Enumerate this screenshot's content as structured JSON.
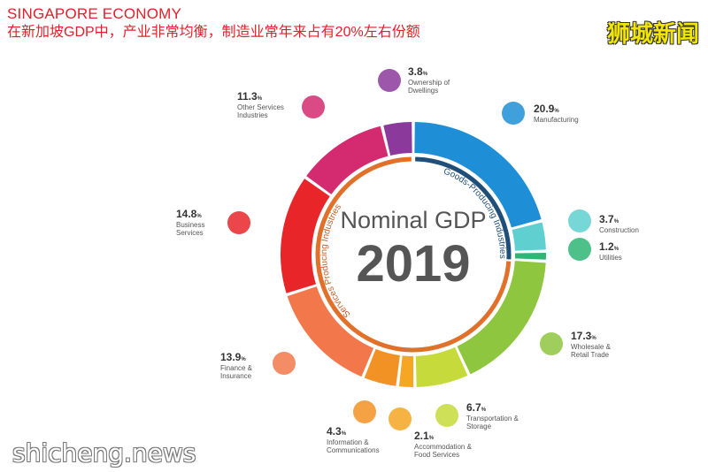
{
  "header": {
    "title": "SINGAPORE ECONOMY",
    "subtitle": "在新加坡GDP中，产业非常均衡，制造业常年来占有20%左右份额"
  },
  "brand": "狮城新闻",
  "watermark": "shicheng.news",
  "center": {
    "line1": "Nominal GDP",
    "line2": "2019"
  },
  "arcs": {
    "goods": "Goods-Producing Industries",
    "services": "Services Producing Industries"
  },
  "chart_data": {
    "type": "pie",
    "title": "Nominal GDP 2019",
    "unit": "%",
    "segments": [
      {
        "label": "Manufacturing",
        "value": 20.9,
        "value_text": "20.9",
        "color": "#1e8fd6",
        "icon": "factory-icon"
      },
      {
        "label": "Construction",
        "value": 3.7,
        "value_text": "3.7",
        "color": "#5fd0cf",
        "icon": "crane-icon"
      },
      {
        "label": "Utilities",
        "value": 1.2,
        "value_text": "1.2",
        "color": "#2fb675",
        "icon": "lightbulb-icon"
      },
      {
        "label": "Wholesale & Retail Trade",
        "value": 17.3,
        "value_text": "17.3",
        "color": "#8fc63f",
        "icon": "box-icon"
      },
      {
        "label": "Transportation & Storage",
        "value": 6.7,
        "value_text": "6.7",
        "color": "#c6da3b",
        "icon": "truck-icon"
      },
      {
        "label": "Accommodation & Food Services",
        "value": 2.1,
        "value_text": "2.1",
        "color": "#f5a623",
        "icon": "shop-icon"
      },
      {
        "label": "Information & Communications",
        "value": 4.3,
        "value_text": "4.3",
        "color": "#f39224",
        "icon": "phone-icon"
      },
      {
        "label": "Finance & Insurance",
        "value": 13.9,
        "value_text": "13.9",
        "color": "#f2784b",
        "icon": "umbrella-icon"
      },
      {
        "label": "Business Services",
        "value": 14.8,
        "value_text": "14.8",
        "color": "#e8262a",
        "icon": "businessman-icon"
      },
      {
        "label": "Other Services Industries",
        "value": 11.3,
        "value_text": "11.3",
        "color": "#d42a6f",
        "icon": "hand-icon"
      },
      {
        "label": "Ownership of Dwellings",
        "value": 3.8,
        "value_text": "3.8",
        "color": "#8b3a9c",
        "icon": "building-icon"
      }
    ]
  }
}
